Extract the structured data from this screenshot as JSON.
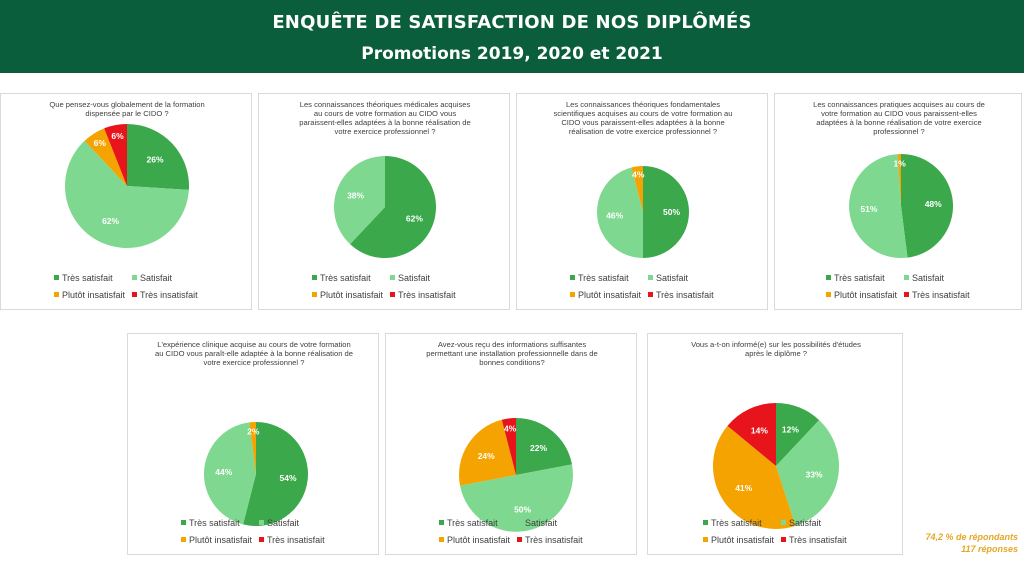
{
  "header": {
    "title": "ENQUÊTE DE SATISFACTION DE NOS DIPLÔMÉS",
    "subtitle": "Promotions 2019, 2020 et 2021"
  },
  "colors": {
    "tres_satisfait": "#3aa84b",
    "satisfait": "#7fd88f",
    "plutot_insatisfait": "#f5a300",
    "tres_insatisfait": "#e8141b",
    "header_bg": "#0b5e3b"
  },
  "legend_labels": [
    "Très satisfait",
    "Satisfait",
    "Plutôt insatisfait",
    "Très insatisfait"
  ],
  "chart_data": [
    {
      "type": "pie",
      "title": "Que pensez-vous globalement de la formation dispensée par le CIDO ?",
      "categories": [
        "Très satisfait",
        "Satisfait",
        "Plutôt insatisfait",
        "Très insatisfait"
      ],
      "values": [
        26,
        62,
        6,
        6
      ],
      "labels": [
        "26%",
        "62%",
        "6%",
        "6%"
      ]
    },
    {
      "type": "pie",
      "title": "Les connaissances théoriques médicales acquises au cours de votre formation au CIDO vous paraissent-elles adaptées à la bonne réalisation de votre exercice professionnel ?",
      "categories": [
        "Très satisfait",
        "Satisfait",
        "Plutôt insatisfait",
        "Très insatisfait"
      ],
      "values": [
        62,
        38,
        0,
        0
      ],
      "labels": [
        "62%",
        "38%",
        "",
        ""
      ]
    },
    {
      "type": "pie",
      "title": "Les connaissances théoriques fondamentales scientifiques acquises au cours de votre formation au CIDO vous paraissent-elles adaptées à la bonne réalisation de votre exercice professionnel ?",
      "categories": [
        "Très satisfait",
        "Satisfait",
        "Plutôt insatisfait",
        "Très insatisfait"
      ],
      "values": [
        50,
        46,
        4,
        0
      ],
      "labels": [
        "50%",
        "46%",
        "4%",
        ""
      ]
    },
    {
      "type": "pie",
      "title": "Les connaissances pratiques acquises au cours de votre formation au CIDO vous paraissent-elles adaptées à la bonne réalisation de votre exercice professionnel ?",
      "categories": [
        "Très satisfait",
        "Satisfait",
        "Plutôt insatisfait",
        "Très insatisfait"
      ],
      "values": [
        48,
        51,
        1,
        0
      ],
      "labels": [
        "48%",
        "51%",
        "1%",
        ""
      ]
    },
    {
      "type": "pie",
      "title": "L'expérience clinique acquise au cours de votre formation au CIDO vous paraît-elle adaptée à la bonne réalisation de votre exercice professionnel ?",
      "categories": [
        "Très satisfait",
        "Satisfait",
        "Plutôt insatisfait",
        "Très insatisfait"
      ],
      "values": [
        54,
        44,
        2,
        0
      ],
      "labels": [
        "54%",
        "44%",
        "2%",
        ""
      ]
    },
    {
      "type": "pie",
      "title": "Avez-vous reçu des informations suffisantes permettant une installation professionnelle dans de bonnes conditions?",
      "categories": [
        "Très satisfait",
        "Satisfait",
        "Plutôt insatisfait",
        "Très insatisfait"
      ],
      "values": [
        22,
        50,
        24,
        4
      ],
      "labels": [
        "22%",
        "50%",
        "24%",
        "4%"
      ]
    },
    {
      "type": "pie",
      "title": "Vous a-t-on informé(e) sur les possibilités d'études après le diplôme ?",
      "categories": [
        "Très satisfait",
        "Satisfait",
        "Plutôt insatisfait",
        "Très insatisfait"
      ],
      "values": [
        12,
        33,
        41,
        14
      ],
      "labels": [
        "12%",
        "33%",
        "41%",
        "14%"
      ]
    }
  ],
  "footer": {
    "respondents": "74,2 % de répondants",
    "responses": "117 réponses"
  }
}
